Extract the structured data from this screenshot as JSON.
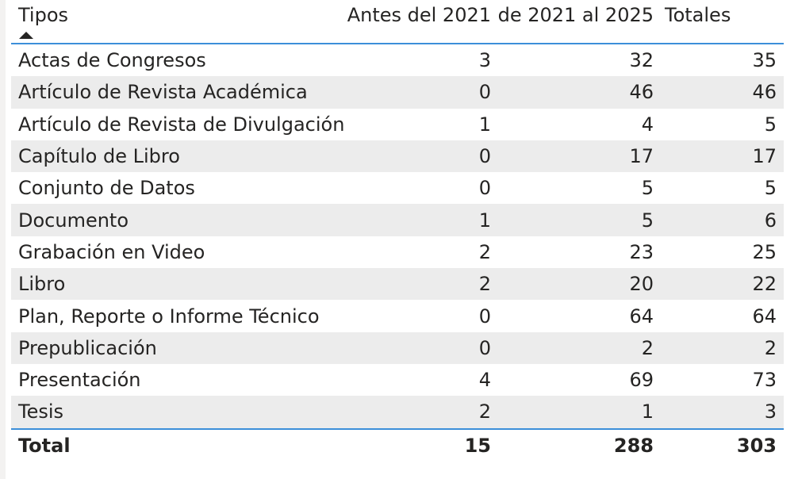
{
  "chart_data": {
    "type": "table",
    "columns": [
      "Tipos",
      "Antes del 2021",
      "de 2021 al 2025",
      "Totales"
    ],
    "sort": {
      "column": "Tipos",
      "direction": "ascending"
    },
    "rows": [
      {
        "tipo": "Actas de Congresos",
        "antes": "3",
        "periodo": "32",
        "total": "35"
      },
      {
        "tipo": "Artículo de Revista Académica",
        "antes": "0",
        "periodo": "46",
        "total": "46"
      },
      {
        "tipo": "Artículo de Revista de Divulgación",
        "antes": "1",
        "periodo": "4",
        "total": "5"
      },
      {
        "tipo": "Capítulo de Libro",
        "antes": "0",
        "periodo": "17",
        "total": "17"
      },
      {
        "tipo": "Conjunto de Datos",
        "antes": "0",
        "periodo": "5",
        "total": "5"
      },
      {
        "tipo": "Documento",
        "antes": "1",
        "periodo": "5",
        "total": "6"
      },
      {
        "tipo": "Grabación en Video",
        "antes": "2",
        "periodo": "23",
        "total": "25"
      },
      {
        "tipo": "Libro",
        "antes": "2",
        "periodo": "20",
        "total": "22"
      },
      {
        "tipo": "Plan, Reporte o Informe Técnico",
        "antes": "0",
        "periodo": "64",
        "total": "64"
      },
      {
        "tipo": "Prepublicación",
        "antes": "0",
        "periodo": "2",
        "total": "2"
      },
      {
        "tipo": "Presentación",
        "antes": "4",
        "periodo": "69",
        "total": "73"
      },
      {
        "tipo": "Tesis",
        "antes": "2",
        "periodo": "1",
        "total": "3"
      }
    ],
    "total_row": {
      "label": "Total",
      "antes": "15",
      "periodo": "288",
      "total": "303"
    },
    "colors": {
      "accent_line": "#3c8fd9",
      "band": "#ececec",
      "text": "#252423"
    }
  }
}
